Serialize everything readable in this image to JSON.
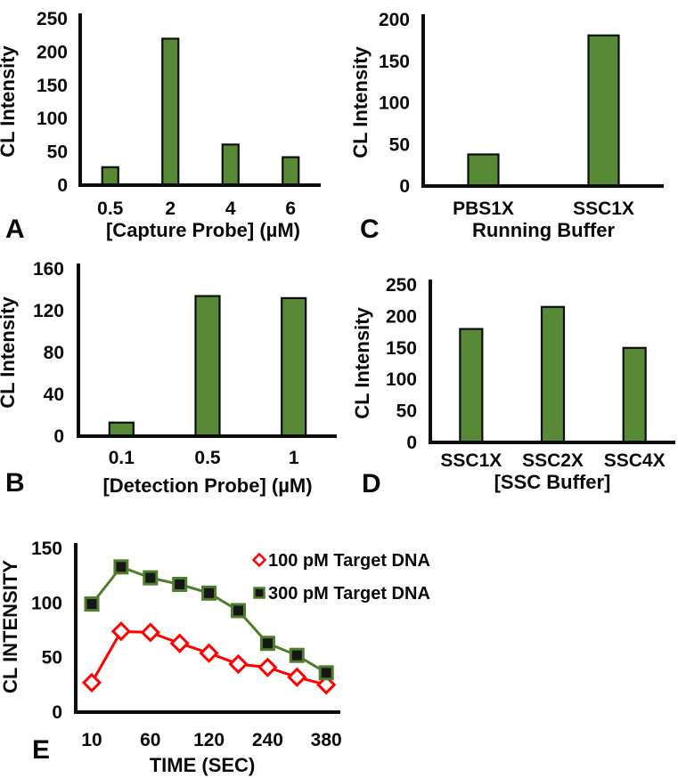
{
  "figure": {
    "background": "#ffffff",
    "text_color": "#0a0a0a",
    "axis_color": "#0d0d0d",
    "bar_fill": "#578936",
    "bar_stroke": "#0d0d0d"
  },
  "chart_data": [
    {
      "panel": "A",
      "panel_letter": "A",
      "type": "bar",
      "title": "",
      "ylabel": "CL Intensity",
      "xlabel": "[Capture Probe] (µM)",
      "categories": [
        "0.5",
        "2",
        "4",
        "6"
      ],
      "values": [
        27,
        220,
        61,
        42
      ],
      "ylim": [
        0,
        250
      ],
      "yticks": [
        0,
        50,
        100,
        150,
        200,
        250
      ],
      "grid": false
    },
    {
      "panel": "C",
      "panel_letter": "C",
      "type": "bar",
      "title": "",
      "ylabel": "CL Intensity",
      "xlabel": "Running Buffer",
      "categories": [
        "PBS1X",
        "SSC1X"
      ],
      "values": [
        38,
        181
      ],
      "ylim": [
        0,
        200
      ],
      "yticks": [
        0,
        50,
        100,
        150,
        200
      ],
      "grid": false
    },
    {
      "panel": "B",
      "panel_letter": "B",
      "type": "bar",
      "title": "",
      "ylabel": "CL Intensity",
      "xlabel": "[Detection Probe] (µM)",
      "categories": [
        "0.1",
        "0.5",
        "1"
      ],
      "values": [
        13,
        134,
        132
      ],
      "ylim": [
        0,
        160
      ],
      "yticks": [
        0,
        40,
        80,
        120,
        160
      ],
      "grid": false
    },
    {
      "panel": "D",
      "panel_letter": "D",
      "type": "bar",
      "title": "",
      "ylabel": "CL Intensity",
      "xlabel": "[SSC Buffer]",
      "categories": [
        "SSC1X",
        "SSC2X",
        "SSC4X"
      ],
      "values": [
        180,
        215,
        150
      ],
      "ylim": [
        0,
        250
      ],
      "yticks": [
        0,
        50,
        100,
        150,
        200,
        250
      ],
      "grid": false
    },
    {
      "panel": "E",
      "panel_letter": "E",
      "type": "line",
      "title": "",
      "ylabel": "CL INTENSITY",
      "xlabel": "TIME (SEC)",
      "ylim": [
        0,
        150
      ],
      "yticks": [
        0,
        50,
        100,
        150
      ],
      "x_tick_labels": [
        "10",
        "60",
        "120",
        "240",
        "380"
      ],
      "x_tick_point_indices": [
        0,
        2,
        4,
        6,
        8
      ],
      "n_points": 9,
      "grid": false,
      "legend_position": "upper-right",
      "series": [
        {
          "name": "100 pM Target DNA",
          "marker": "open-diamond",
          "line_color": "#ff0000",
          "marker_fill": "#ffffff",
          "marker_stroke": "#ff0000",
          "values": [
            27,
            74,
            73,
            63,
            54,
            44,
            41,
            32,
            25
          ]
        },
        {
          "name": "300 pM Target DNA",
          "marker": "filled-square",
          "line_color": "#4e7d2b",
          "marker_fill": "#161616",
          "marker_stroke": "#4e7d2b",
          "values": [
            99,
            133,
            123,
            117,
            109,
            93,
            63,
            52,
            36
          ]
        }
      ]
    }
  ]
}
